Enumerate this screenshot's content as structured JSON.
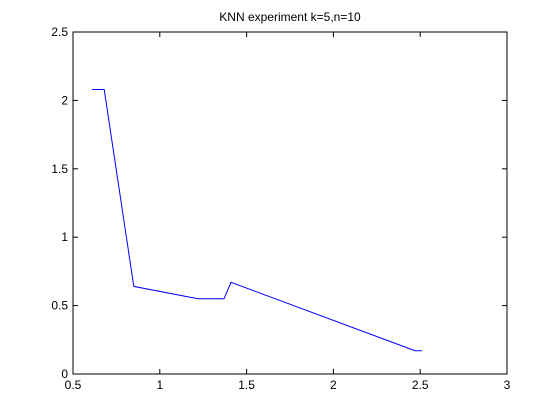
{
  "chart_data": {
    "type": "line",
    "title": "KNN experiment k=5,n=10",
    "xlabel": "",
    "ylabel": "",
    "xlim": [
      0.5,
      3
    ],
    "ylim": [
      0,
      2.5
    ],
    "xticks": [
      0.5,
      1,
      1.5,
      2,
      2.5,
      3
    ],
    "xtick_labels": [
      "0.5",
      "1",
      "1.5",
      "2",
      "2.5",
      "3"
    ],
    "yticks": [
      0,
      0.5,
      1,
      1.5,
      2,
      2.5
    ],
    "ytick_labels": [
      "0",
      "0.5",
      "1",
      "1.5",
      "2",
      "2.5"
    ],
    "grid": false,
    "series": [
      {
        "color": "#0000ff",
        "x": [
          0.61,
          0.68,
          0.85,
          1.22,
          1.37,
          1.41,
          2.47,
          2.51
        ],
        "y": [
          2.08,
          2.08,
          0.64,
          0.55,
          0.55,
          0.67,
          0.17,
          0.17
        ]
      }
    ]
  }
}
